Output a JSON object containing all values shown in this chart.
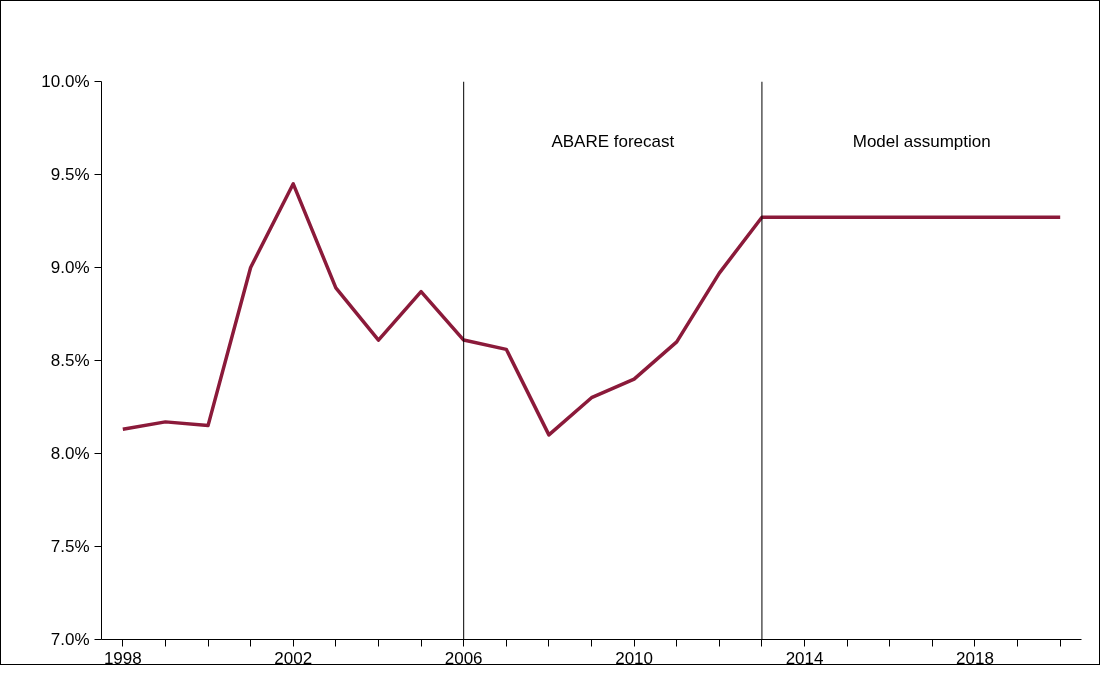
{
  "chart_data": {
    "type": "line",
    "x": [
      1998,
      1999,
      2000,
      2001,
      2002,
      2003,
      2004,
      2005,
      2006,
      2007,
      2008,
      2009,
      2010,
      2011,
      2012,
      2013,
      2014,
      2015,
      2016,
      2017,
      2018,
      2019,
      2020
    ],
    "series": [
      {
        "color": "#8b1a3a",
        "values": [
          8.13,
          8.17,
          8.15,
          9.0,
          9.45,
          8.89,
          8.61,
          8.87,
          8.61,
          8.56,
          8.1,
          8.3,
          8.4,
          8.6,
          8.97,
          9.27,
          9.27,
          9.27,
          9.27,
          9.27,
          9.27,
          9.27,
          9.27
        ]
      }
    ],
    "xlim": [
      1997.5,
      2020.5
    ],
    "xticks": [
      1998,
      {
        "value": 1999,
        "label": null
      },
      {
        "value": 2000,
        "label": null
      },
      {
        "value": 2001,
        "label": null
      },
      2002,
      {
        "value": 2003,
        "label": null
      },
      {
        "value": 2004,
        "label": null
      },
      {
        "value": 2005,
        "label": null
      },
      2006,
      {
        "value": 2007,
        "label": null
      },
      {
        "value": 2008,
        "label": null
      },
      {
        "value": 2009,
        "label": null
      },
      2010,
      {
        "value": 2011,
        "label": null
      },
      {
        "value": 2012,
        "label": null
      },
      {
        "value": 2013,
        "label": null
      },
      2014,
      {
        "value": 2015,
        "label": null
      },
      {
        "value": 2016,
        "label": null
      },
      {
        "value": 2017,
        "label": null
      },
      2018,
      {
        "value": 2019,
        "label": null
      },
      {
        "value": 2020,
        "label": null
      }
    ],
    "ylim": [
      7.0,
      10.0
    ],
    "yticks": [
      {
        "value": 7.0,
        "label": "7.0%"
      },
      {
        "value": 7.5,
        "label": "7.5%"
      },
      {
        "value": 8.0,
        "label": "8.0%"
      },
      {
        "value": 8.5,
        "label": "8.5%"
      },
      {
        "value": 9.0,
        "label": "9.0%"
      },
      {
        "value": 9.5,
        "label": "9.5%"
      },
      {
        "value": 10.0,
        "label": "10.0%"
      }
    ],
    "ref_lines": [
      {
        "axis": "x",
        "value": 2006,
        "color": "#000000"
      },
      {
        "axis": "x",
        "value": 2013,
        "color": "#000000"
      }
    ],
    "annotations": [
      "ABARE forecast",
      "Model assumption"
    ],
    "grid": false,
    "marker": "none",
    "line_style": "solid"
  }
}
